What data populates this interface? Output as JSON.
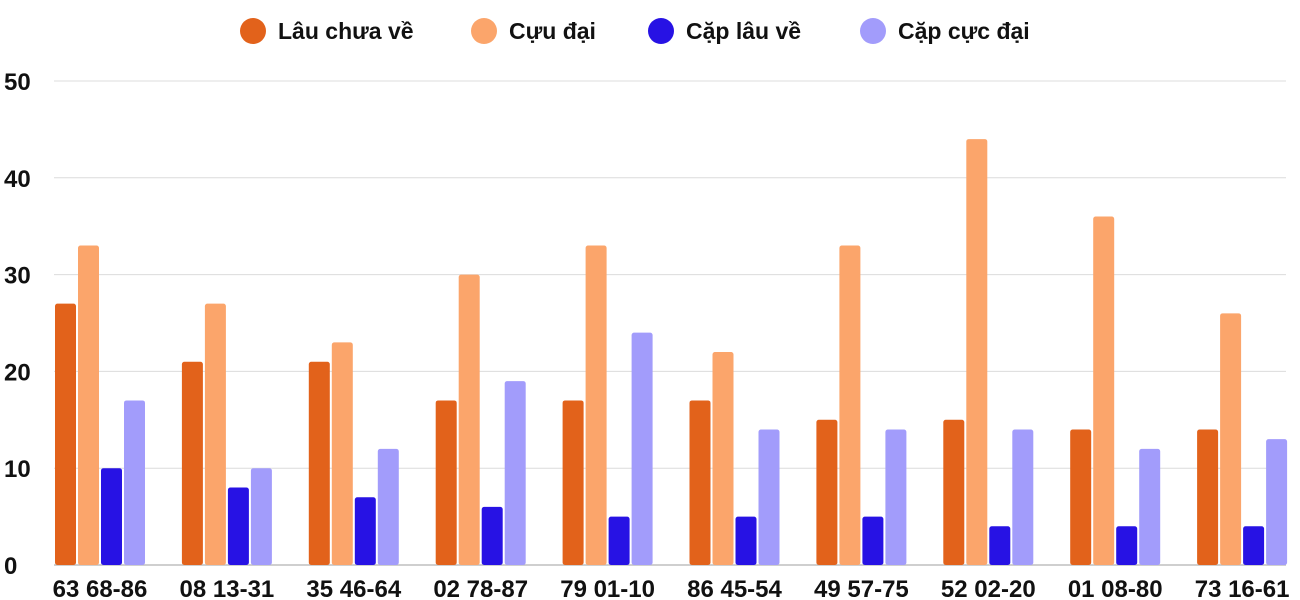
{
  "chart_data": {
    "type": "bar",
    "title": "",
    "xlabel": "",
    "ylabel": "",
    "ylim": [
      0,
      50
    ],
    "yticks": [
      0,
      10,
      20,
      30,
      40,
      50
    ],
    "grid": true,
    "legend_position": "top-center",
    "categories": [
      "63 68-86",
      "08 13-31",
      "35 46-64",
      "02 78-87",
      "79 01-10",
      "86 45-54",
      "49 57-75",
      "52 02-20",
      "01 08-80",
      "73 16-61"
    ],
    "series": [
      {
        "name": "Lâu chưa về",
        "color": "#e2621b",
        "values": [
          27,
          21,
          21,
          17,
          17,
          17,
          15,
          15,
          14,
          14
        ]
      },
      {
        "name": "Cựu đại",
        "color": "#fba56b",
        "values": [
          33,
          27,
          23,
          30,
          33,
          22,
          33,
          44,
          36,
          26
        ]
      },
      {
        "name": "Cặp lâu về",
        "color": "#2712e4",
        "values": [
          10,
          8,
          7,
          6,
          5,
          5,
          5,
          4,
          4,
          4
        ]
      },
      {
        "name": "Cặp cực đại",
        "color": "#a29cfb",
        "values": [
          17,
          10,
          12,
          19,
          24,
          14,
          14,
          14,
          12,
          13
        ]
      }
    ]
  }
}
